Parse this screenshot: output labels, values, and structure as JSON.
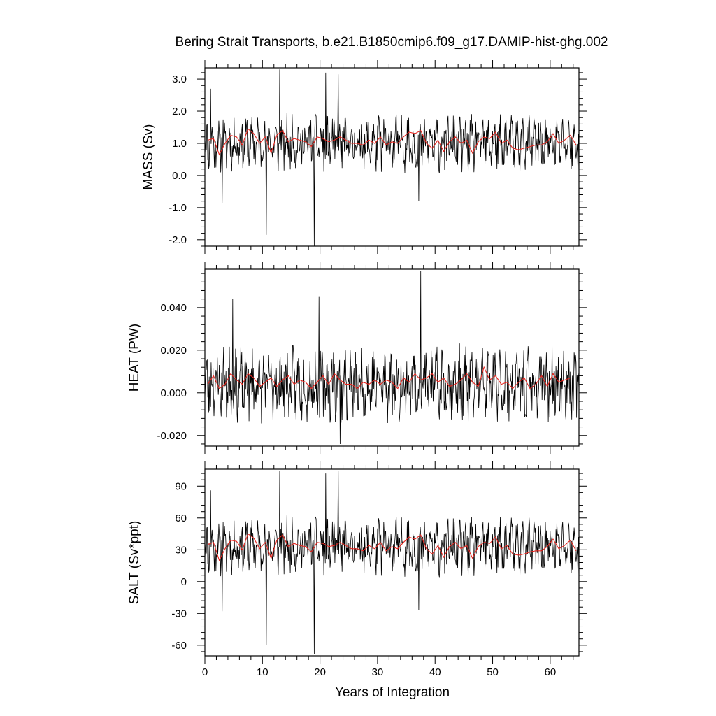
{
  "title": "Bering Strait Transports, b.e21.B1850cmip6.f09_g17.DAMIP-hist-ghg.002",
  "xlabel": "Years of Integration",
  "colors": {
    "monthly": "#000000",
    "annual": "#e8251e",
    "frame": "#000000"
  },
  "chart_data": [
    {
      "type": "line",
      "panel": "MASS",
      "ylabel": "MASS (Sv)",
      "xlim": [
        0,
        65
      ],
      "ylim": [
        -2.2,
        3.35
      ],
      "xticks": [
        0,
        10,
        20,
        30,
        40,
        50,
        60
      ],
      "xtick_labels": [
        "0",
        "10",
        "20",
        "30",
        "40",
        "50",
        "60"
      ],
      "yticks": [
        -2.0,
        -1.0,
        0.0,
        1.0,
        2.0,
        3.0
      ],
      "ytick_labels": [
        "-2.0",
        "-1.0",
        "0.0",
        "1.0",
        "2.0",
        "3.0"
      ],
      "series": [
        {
          "kind": "monthly",
          "mean": 1.0,
          "amplitude": 0.55,
          "spikes": [
            [
              1.0,
              2.7
            ],
            [
              3.0,
              -0.85
            ],
            [
              10.7,
              -1.85
            ],
            [
              13.0,
              3.3
            ],
            [
              19.0,
              -2.2
            ],
            [
              21.0,
              3.2
            ],
            [
              23.2,
              3.15
            ],
            [
              37.2,
              -0.8
            ]
          ],
          "seed": 11
        },
        {
          "kind": "annual",
          "x": [
            0.5,
            1.5,
            2.5,
            3.5,
            4.5,
            5.5,
            6.5,
            7.5,
            8.5,
            9.5,
            10.5,
            11.5,
            12.5,
            13.5,
            14.5,
            15.5,
            16.5,
            17.5,
            18.5,
            19.5,
            20.5,
            21.5,
            22.5,
            23.5,
            24.5,
            25.5,
            26.5,
            27.5,
            28.5,
            29.5,
            30.5,
            31.5,
            32.5,
            33.5,
            34.5,
            35.5,
            36.5,
            37.5,
            38.5,
            39.5,
            40.5,
            41.5,
            42.5,
            43.5,
            44.5,
            45.5,
            46.5,
            47.5,
            48.5,
            49.5,
            50.5,
            51.5,
            52.5,
            53.5,
            54.5,
            55.5,
            56.5,
            57.5,
            58.5,
            59.5,
            60.5,
            61.5,
            62.5,
            63.5,
            64.5
          ],
          "values": [
            1.1,
            1.15,
            0.65,
            1.0,
            1.25,
            1.2,
            0.95,
            1.45,
            1.3,
            1.0,
            1.2,
            0.7,
            1.25,
            1.4,
            1.05,
            1.15,
            1.1,
            1.05,
            0.9,
            1.2,
            1.15,
            1.05,
            1.1,
            1.2,
            1.1,
            1.0,
            1.0,
            0.95,
            1.1,
            1.0,
            1.2,
            0.95,
            1.05,
            1.0,
            1.2,
            1.35,
            1.3,
            1.4,
            1.0,
            0.85,
            1.1,
            0.75,
            1.05,
            1.2,
            1.0,
            1.1,
            0.7,
            1.05,
            1.2,
            1.15,
            1.35,
            1.0,
            1.1,
            0.85,
            0.8,
            0.85,
            0.9,
            0.95,
            0.95,
            1.05,
            1.3,
            1.0,
            1.1,
            1.25,
            0.95
          ]
        }
      ]
    },
    {
      "type": "line",
      "panel": "HEAT",
      "ylabel": "HEAT (PW)",
      "xlim": [
        0,
        65
      ],
      "ylim": [
        -0.025,
        0.058
      ],
      "xticks": [
        0,
        10,
        20,
        30,
        40,
        50,
        60
      ],
      "xtick_labels": [
        "0",
        "10",
        "20",
        "30",
        "40",
        "50",
        "60"
      ],
      "yticks": [
        -0.02,
        0.0,
        0.02,
        0.04
      ],
      "ytick_labels": [
        "-0.020",
        "0.000",
        "0.020",
        "0.040"
      ],
      "series": [
        {
          "kind": "monthly",
          "mean": 0.004,
          "amplitude": 0.011,
          "spikes": [
            [
              37.5,
              0.057
            ],
            [
              23.5,
              -0.024
            ],
            [
              4.8,
              0.044
            ],
            [
              19.8,
              0.045
            ]
          ],
          "seed": 23
        },
        {
          "kind": "annual",
          "x": [
            0.5,
            1.5,
            2.5,
            3.5,
            4.5,
            5.5,
            6.5,
            7.5,
            8.5,
            9.5,
            10.5,
            11.5,
            12.5,
            13.5,
            14.5,
            15.5,
            16.5,
            17.5,
            18.5,
            19.5,
            20.5,
            21.5,
            22.5,
            23.5,
            24.5,
            25.5,
            26.5,
            27.5,
            28.5,
            29.5,
            30.5,
            31.5,
            32.5,
            33.5,
            34.5,
            35.5,
            36.5,
            37.5,
            38.5,
            39.5,
            40.5,
            41.5,
            42.5,
            43.5,
            44.5,
            45.5,
            46.5,
            47.5,
            48.5,
            49.5,
            50.5,
            51.5,
            52.5,
            53.5,
            54.5,
            55.5,
            56.5,
            57.5,
            58.5,
            59.5,
            60.5,
            61.5,
            62.5,
            63.5,
            64.5
          ],
          "values": [
            0.004,
            0.008,
            0.002,
            0.004,
            0.009,
            0.006,
            0.004,
            0.009,
            0.007,
            0.003,
            0.005,
            0.007,
            0.003,
            0.006,
            0.008,
            0.004,
            0.006,
            0.005,
            0.002,
            0.005,
            0.008,
            0.004,
            0.009,
            0.006,
            0.004,
            0.004,
            0.002,
            0.005,
            0.004,
            0.006,
            0.004,
            0.006,
            0.005,
            0.002,
            0.007,
            0.005,
            0.009,
            0.006,
            0.007,
            0.009,
            0.005,
            0.007,
            0.003,
            0.004,
            0.006,
            0.009,
            0.005,
            0.003,
            0.012,
            0.006,
            0.008,
            0.004,
            0.005,
            0.002,
            0.005,
            0.007,
            0.002,
            0.004,
            0.008,
            0.003,
            0.009,
            0.005,
            0.006,
            0.007,
            0.007
          ]
        }
      ]
    },
    {
      "type": "line",
      "panel": "SALT",
      "ylabel": "SALT (Sv*ppt)",
      "xlim": [
        0,
        65
      ],
      "ylim": [
        -70,
        106
      ],
      "xticks": [
        0,
        10,
        20,
        30,
        40,
        50,
        60
      ],
      "xtick_labels": [
        "0",
        "10",
        "20",
        "30",
        "40",
        "50",
        "60"
      ],
      "yticks": [
        -60,
        -30,
        0,
        30,
        60,
        90
      ],
      "ytick_labels": [
        "-60",
        "-30",
        "0",
        "30",
        "60",
        "90"
      ],
      "series": [
        {
          "kind": "monthly",
          "mean": 33,
          "amplitude": 17,
          "spikes": [
            [
              1.0,
              86
            ],
            [
              3.0,
              -28
            ],
            [
              10.7,
              -60
            ],
            [
              13.0,
              104
            ],
            [
              19.0,
              -68
            ],
            [
              21.0,
              102
            ],
            [
              23.2,
              104
            ],
            [
              37.2,
              -27
            ]
          ],
          "seed": 11
        },
        {
          "kind": "annual",
          "x": [
            0.5,
            1.5,
            2.5,
            3.5,
            4.5,
            5.5,
            6.5,
            7.5,
            8.5,
            9.5,
            10.5,
            11.5,
            12.5,
            13.5,
            14.5,
            15.5,
            16.5,
            17.5,
            18.5,
            19.5,
            20.5,
            21.5,
            22.5,
            23.5,
            24.5,
            25.5,
            26.5,
            27.5,
            28.5,
            29.5,
            30.5,
            31.5,
            32.5,
            33.5,
            34.5,
            35.5,
            36.5,
            37.5,
            38.5,
            39.5,
            40.5,
            41.5,
            42.5,
            43.5,
            44.5,
            45.5,
            46.5,
            47.5,
            48.5,
            49.5,
            50.5,
            51.5,
            52.5,
            53.5,
            54.5,
            55.5,
            56.5,
            57.5,
            58.5,
            59.5,
            60.5,
            61.5,
            62.5,
            63.5,
            64.5
          ],
          "values": [
            35,
            37,
            20,
            31,
            39,
            38,
            30,
            45,
            41,
            31,
            37,
            22,
            39,
            44,
            33,
            36,
            34,
            33,
            28,
            37,
            36,
            33,
            34,
            37,
            34,
            31,
            31,
            29,
            34,
            31,
            37,
            29,
            33,
            31,
            37,
            42,
            40,
            44,
            31,
            26,
            34,
            23,
            33,
            37,
            31,
            34,
            22,
            33,
            37,
            36,
            42,
            31,
            34,
            26,
            25,
            26,
            28,
            29,
            29,
            33,
            40,
            31,
            34,
            39,
            29
          ]
        }
      ]
    }
  ]
}
